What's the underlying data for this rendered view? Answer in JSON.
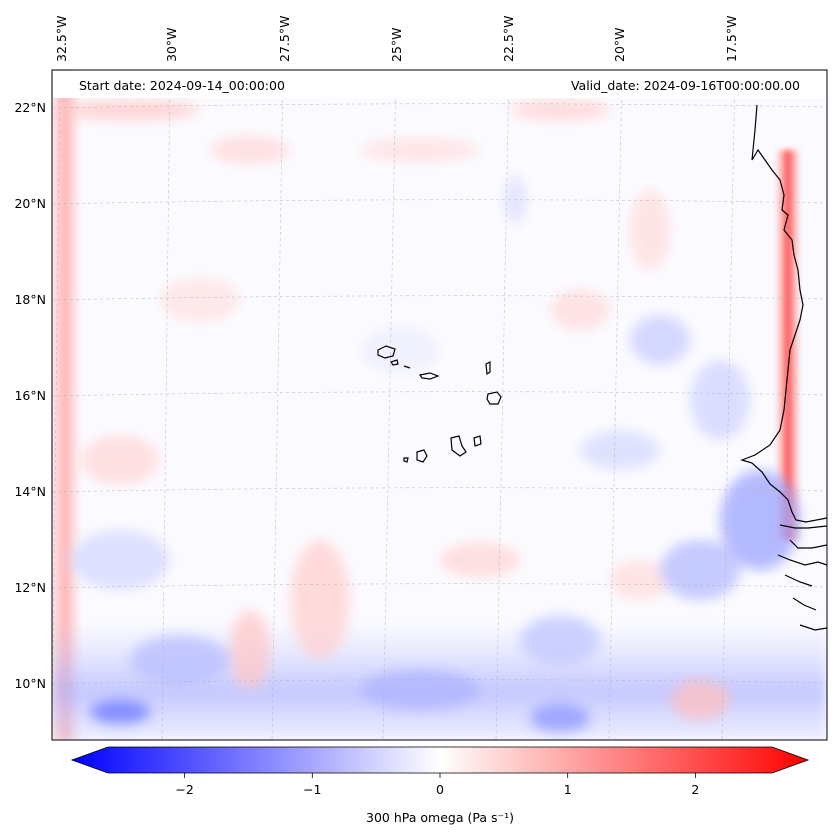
{
  "header": {
    "start_date": "Start date: 2024-09-14_00:00:00",
    "valid_date": "Valid_date: 2024-09-16T00:00:00.00"
  },
  "longitude_labels": [
    "32.5°W",
    "30°W",
    "27.5°W",
    "25°W",
    "22.5°W",
    "20°W",
    "17.5°W"
  ],
  "latitude_labels": [
    "22°N",
    "20°N",
    "18°N",
    "16°N",
    "14°N",
    "12°N",
    "10°N"
  ],
  "colorbar": {
    "label": "300 hPa omega (Pa s⁻¹)",
    "ticks": [
      "−2",
      "−1",
      "0",
      "1",
      "2"
    ],
    "range": [
      -2.6,
      2.6
    ],
    "colormap": "bwr",
    "extend": "both"
  },
  "colors": {
    "negative": "#0000ff",
    "neutral": "#ffffff",
    "positive": "#ff0000",
    "coastline": "#000000",
    "gridline": "#b0b0b0"
  }
}
